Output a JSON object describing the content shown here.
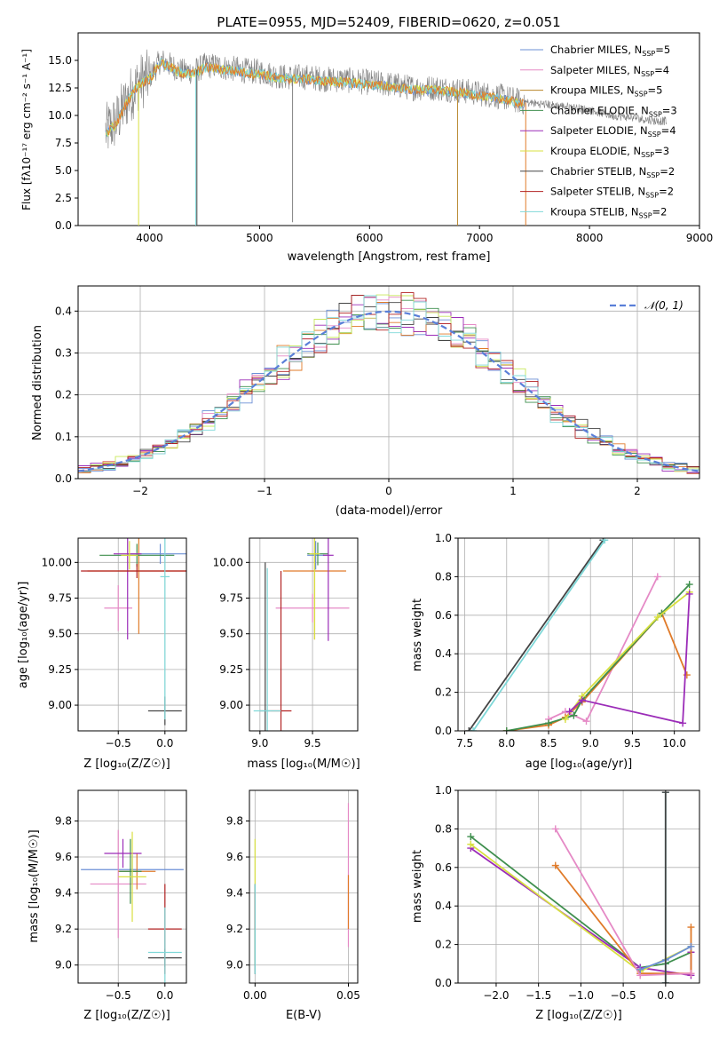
{
  "figure": {
    "title": "PLATE=0955, MJD=52409, FIBERID=0620, z=0.051"
  },
  "colors": {
    "Chabrier MILES": "#6b8fd6",
    "Salpeter MILES": "#e58ac6",
    "Kroupa MILES": "#b8862a",
    "Chabrier ELODIE": "#3f8f4e",
    "Salpeter ELODIE": "#9b2cb8",
    "Kroupa ELODIE": "#d8e040",
    "Chabrier STELIB": "#444444",
    "Salpeter STELIB": "#b22222",
    "Kroupa STELIB": "#7fd8d8",
    "data": "#808080",
    "normal": "#5a7fd8",
    "orange": "#e07b2a",
    "lime": "#c8e85a"
  },
  "chart_data": [
    {
      "id": "spectrum",
      "type": "line",
      "title": "PLATE=0955, MJD=52409, FIBERID=0620, z=0.051",
      "xlabel": "wavelength [Angstrom, rest frame]",
      "ylabel": "Flux [fλ10⁻¹⁷ erg cm⁻² s⁻¹ A⁻¹]",
      "xlim": [
        3350,
        9000
      ],
      "ylim": [
        0,
        17.5
      ],
      "xticks": [
        "4000",
        "5000",
        "6000",
        "7000",
        "8000",
        "9000"
      ],
      "yticks": [
        "0.0",
        "2.5",
        "5.0",
        "7.5",
        "10.0",
        "12.5",
        "15.0"
      ],
      "grid": false,
      "legend_position": "top-right",
      "legend": [
        {
          "name": "Chabrier MILES, N",
          "sub": "SSP",
          "eq": "=5"
        },
        {
          "name": "Salpeter MILES, N",
          "sub": "SSP",
          "eq": "=4"
        },
        {
          "name": "Kroupa MILES, N",
          "sub": "SSP",
          "eq": "=5"
        },
        {
          "name": "Chabrier ELODIE, N",
          "sub": "SSP",
          "eq": "=3"
        },
        {
          "name": "Salpeter ELODIE, N",
          "sub": "SSP",
          "eq": "=4"
        },
        {
          "name": "Kroupa ELODIE, N",
          "sub": "SSP",
          "eq": "=3"
        },
        {
          "name": "Chabrier STELIB, N",
          "sub": "SSP",
          "eq": "=2"
        },
        {
          "name": "Salpeter STELIB, N",
          "sub": "SSP",
          "eq": "=2"
        },
        {
          "name": "Kroupa STELIB, N",
          "sub": "SSP",
          "eq": "=2"
        }
      ],
      "series_envelope": {
        "x": [
          3600,
          3700,
          3800,
          3900,
          4000,
          4100,
          4200,
          4300,
          4400,
          4500,
          4600,
          4700,
          4800,
          4900,
          5000,
          5200,
          5400,
          5600,
          5800,
          6000,
          6200,
          6400,
          6600,
          6800,
          7000,
          7200,
          7400,
          7600,
          7800,
          8000,
          8200,
          8400,
          8600,
          8700
        ],
        "y": [
          8.5,
          9.5,
          11.5,
          13.0,
          13.5,
          15.0,
          14.5,
          14.0,
          14.0,
          14.5,
          14.5,
          14.3,
          14.2,
          14.0,
          14.0,
          13.5,
          13.5,
          13.3,
          13.2,
          13.0,
          12.8,
          12.5,
          12.5,
          12.3,
          12.0,
          11.7,
          11.2,
          11.0,
          10.8,
          10.5,
          10.0,
          9.8,
          9.5,
          9.5
        ]
      }
    },
    {
      "id": "residuals",
      "type": "line",
      "xlabel": "(data-model)/error",
      "ylabel": "Normed distribution",
      "xlim": [
        -2.5,
        2.5
      ],
      "ylim": [
        0,
        0.46
      ],
      "xticks": [
        "−2",
        "−1",
        "0",
        "1",
        "2"
      ],
      "yticks": [
        "0.0",
        "0.1",
        "0.2",
        "0.3",
        "0.4"
      ],
      "grid": true,
      "legend": [
        {
          "name": "𝒩(0, 1)"
        }
      ],
      "legend_position": "top-right"
    },
    {
      "id": "age-vs-Z",
      "type": "scatter",
      "xlabel": "Z [log₁₀(Z/Z☉)]",
      "ylabel": "age  [log₁₀(age/yr)]",
      "xlim": [
        -0.93,
        0.23
      ],
      "ylim": [
        8.82,
        10.17
      ],
      "xticks": [
        "−0.5",
        "0.0"
      ],
      "yticks": [
        "9.00",
        "9.25",
        "9.50",
        "9.75",
        "10.00"
      ],
      "grid": true,
      "points": [
        {
          "x": -0.05,
          "y": 10.06,
          "xerr": 0.35,
          "yerr": 0.07,
          "color": "#6b8fd6"
        },
        {
          "x": -0.5,
          "y": 9.68,
          "xerr": 0.15,
          "yerr": 0.16,
          "color": "#e58ac6"
        },
        {
          "x": -0.28,
          "y": 9.94,
          "xerr": 0.55,
          "yerr": 0.44,
          "color": "#e07b2a"
        },
        {
          "x": -0.3,
          "y": 10.05,
          "xerr": 0.4,
          "yerr": 0.08,
          "color": "#3f8f4e"
        },
        {
          "x": -0.4,
          "y": 10.06,
          "xerr": 0.15,
          "yerr": 0.6,
          "color": "#9b2cb8"
        },
        {
          "x": -0.38,
          "y": 10.05,
          "xerr": 0.09,
          "yerr": 0.1,
          "color": "#d8e040"
        },
        {
          "x": 0.0,
          "y": 8.96,
          "xerr": 0.18,
          "yerr": 0.1,
          "color": "#444444"
        },
        {
          "x": -0.3,
          "y": 9.94,
          "xerr": 0.6,
          "yerr": 0.05,
          "color": "#b22222"
        },
        {
          "x": 0.0,
          "y": 9.9,
          "xerr": 0.05,
          "yerr": 1.0,
          "color": "#7fd8d8"
        }
      ]
    },
    {
      "id": "age-vs-mass",
      "type": "scatter",
      "xlabel": "mass [log₁₀(M/M☉)]",
      "ylabel": "",
      "xlim": [
        8.9,
        9.93
      ],
      "ylim": [
        8.82,
        10.17
      ],
      "xticks": [
        "9.0",
        "9.5"
      ],
      "yticks": [
        "9.00",
        "9.25",
        "9.50",
        "9.75",
        "10.00"
      ],
      "grid": true,
      "points": [
        {
          "x": 9.53,
          "y": 10.05,
          "xerr": 0.08,
          "yerr": 0.1,
          "color": "#6b8fd6"
        },
        {
          "x": 9.5,
          "y": 9.68,
          "xerr": 0.35,
          "yerr": 0.1,
          "color": "#e58ac6"
        },
        {
          "x": 9.52,
          "y": 9.94,
          "xerr": 0.3,
          "yerr": 0.48,
          "color": "#e07b2a"
        },
        {
          "x": 9.55,
          "y": 10.06,
          "xerr": 0.1,
          "yerr": 0.08,
          "color": "#3f8f4e"
        },
        {
          "x": 9.65,
          "y": 10.05,
          "xerr": 0.05,
          "yerr": 0.6,
          "color": "#9b2cb8"
        },
        {
          "x": 9.52,
          "y": 10.06,
          "xerr": 0.05,
          "yerr": 0.6,
          "color": "#d8e040"
        },
        {
          "x": 9.05,
          "y": 8.96,
          "xerr": 0.05,
          "yerr": 1.04,
          "color": "#444444"
        },
        {
          "x": 9.2,
          "y": 8.96,
          "xerr": 0.1,
          "yerr": 0.98,
          "color": "#b22222"
        },
        {
          "x": 9.07,
          "y": 8.96,
          "xerr": 0.13,
          "yerr": 1.0,
          "color": "#7fd8d8"
        }
      ]
    },
    {
      "id": "massweight-vs-age",
      "type": "line",
      "xlabel": "age  [log₁₀(age/yr)]",
      "ylabel": "mass weight",
      "xlim": [
        7.42,
        10.3
      ],
      "ylim": [
        0.0,
        1.0
      ],
      "xticks": [
        "7.5",
        "8.0",
        "8.5",
        "9.0",
        "9.5",
        "10.0"
      ],
      "yticks": [
        "0.0",
        "0.2",
        "0.4",
        "0.6",
        "0.8",
        "1.0"
      ],
      "grid": true,
      "series": [
        {
          "color": "#444444",
          "x": [
            7.55,
            9.15
          ],
          "y": [
            0.0,
            0.99
          ]
        },
        {
          "color": "#7fd8d8",
          "x": [
            7.6,
            9.17
          ],
          "y": [
            0.0,
            0.99
          ]
        },
        {
          "color": "#e58ac6",
          "x": [
            8.5,
            8.7,
            8.95,
            9.8
          ],
          "y": [
            0.06,
            0.1,
            0.05,
            0.8
          ]
        },
        {
          "color": "#e07b2a",
          "x": [
            8.0,
            8.5,
            8.7,
            8.9,
            9.85,
            10.15
          ],
          "y": [
            0.0,
            0.03,
            0.07,
            0.15,
            0.61,
            0.29
          ]
        },
        {
          "color": "#3f8f4e",
          "x": [
            8.0,
            8.5,
            8.8,
            8.9,
            9.85,
            10.18
          ],
          "y": [
            0.0,
            0.04,
            0.08,
            0.16,
            0.61,
            0.76
          ]
        },
        {
          "color": "#d8e040",
          "x": [
            8.7,
            8.9,
            9.8,
            10.18
          ],
          "y": [
            0.06,
            0.18,
            0.59,
            0.72
          ]
        },
        {
          "color": "#9b2cb8",
          "x": [
            8.75,
            8.9,
            10.1,
            10.18
          ],
          "y": [
            0.1,
            0.16,
            0.04,
            0.71
          ]
        }
      ]
    },
    {
      "id": "mass-vs-Z",
      "type": "scatter",
      "xlabel": "Z [log₁₀(Z/Z☉)]",
      "ylabel": "mass [log₁₀(M/M☉)]",
      "xlim": [
        -0.93,
        0.23
      ],
      "ylim": [
        8.9,
        9.97
      ],
      "xticks": [
        "−0.5",
        "0.0"
      ],
      "yticks": [
        "9.0",
        "9.2",
        "9.4",
        "9.6",
        "9.8"
      ],
      "grid": true,
      "points": [
        {
          "x": -0.35,
          "y": 9.53,
          "xerr": 0.55,
          "yerr": 0.08,
          "color": "#6b8fd6"
        },
        {
          "x": -0.5,
          "y": 9.45,
          "xerr": 0.3,
          "yerr": 0.3,
          "color": "#e58ac6"
        },
        {
          "x": -0.3,
          "y": 9.52,
          "xerr": 0.2,
          "yerr": 0.1,
          "color": "#e07b2a"
        },
        {
          "x": -0.37,
          "y": 9.52,
          "xerr": 0.12,
          "yerr": 0.18,
          "color": "#3f8f4e"
        },
        {
          "x": -0.45,
          "y": 9.62,
          "xerr": 0.2,
          "yerr": 0.08,
          "color": "#9b2cb8"
        },
        {
          "x": -0.35,
          "y": 9.49,
          "xerr": 0.15,
          "yerr": 0.25,
          "color": "#d8e040"
        },
        {
          "x": 0.0,
          "y": 9.04,
          "xerr": 0.18,
          "yerr": 0.05,
          "color": "#444444"
        },
        {
          "x": 0.0,
          "y": 9.2,
          "xerr": 0.18,
          "yerr": 0.25,
          "color": "#b22222"
        },
        {
          "x": 0.0,
          "y": 9.07,
          "xerr": 0.18,
          "yerr": 0.25,
          "color": "#7fd8d8"
        }
      ]
    },
    {
      "id": "mass-vs-EBV",
      "type": "scatter",
      "xlabel": "E(B-V)",
      "ylabel": "",
      "xlim": [
        -0.003,
        0.055
      ],
      "ylim": [
        8.9,
        9.97
      ],
      "xticks": [
        "0.00",
        "0.05"
      ],
      "yticks": [
        "9.0",
        "9.2",
        "9.4",
        "9.6",
        "9.8"
      ],
      "grid": true,
      "points": [
        {
          "x": 0.05,
          "y": 9.5,
          "xerr": 0,
          "yerr": 0.4,
          "color": "#e58ac6"
        },
        {
          "x": 0.05,
          "y": 9.35,
          "xerr": 0,
          "yerr": 0.15,
          "color": "#e07b2a"
        },
        {
          "x": 0.0,
          "y": 9.35,
          "xerr": 0,
          "yerr": 0.35,
          "color": "#d8e040"
        },
        {
          "x": 0.0,
          "y": 9.2,
          "xerr": 0,
          "yerr": 0.25,
          "color": "#444444"
        },
        {
          "x": 0.0,
          "y": 9.3,
          "xerr": 0,
          "yerr": 0.1,
          "color": "#b22222"
        },
        {
          "x": 0.0,
          "y": 9.2,
          "xerr": 0,
          "yerr": 0.25,
          "color": "#7fd8d8"
        }
      ]
    },
    {
      "id": "massweight-vs-Z",
      "type": "line",
      "xlabel": "Z [log₁₀(Z/Z☉)]",
      "ylabel": "mass weight",
      "xlim": [
        -2.45,
        0.4
      ],
      "ylim": [
        0.0,
        1.0
      ],
      "xticks": [
        "−2.0",
        "−1.5",
        "−1.0",
        "−0.5",
        "0.0"
      ],
      "yticks": [
        "0.0",
        "0.2",
        "0.4",
        "0.6",
        "0.8",
        "1.0"
      ],
      "grid": true,
      "series": [
        {
          "color": "#3f8f4e",
          "x": [
            -2.3,
            -0.3,
            0.0,
            0.3
          ],
          "y": [
            0.76,
            0.08,
            0.1,
            0.16
          ]
        },
        {
          "color": "#9b2cb8",
          "x": [
            -2.3,
            -0.3,
            0.3,
            0.3
          ],
          "y": [
            0.7,
            0.08,
            0.04,
            0.16
          ]
        },
        {
          "color": "#d8e040",
          "x": [
            -2.3,
            -0.3,
            0.3
          ],
          "y": [
            0.72,
            0.06,
            0.19
          ]
        },
        {
          "color": "#e07b2a",
          "x": [
            -1.3,
            -0.3,
            0.3,
            0.3
          ],
          "y": [
            0.61,
            0.05,
            0.05,
            0.29
          ]
        },
        {
          "color": "#e58ac6",
          "x": [
            -1.3,
            -0.3,
            0.3
          ],
          "y": [
            0.8,
            0.04,
            0.05
          ]
        },
        {
          "color": "#6b8fd6",
          "x": [
            -0.3,
            0.0,
            0.3
          ],
          "y": [
            0.07,
            0.12,
            0.19
          ]
        },
        {
          "color": "#7fd8d8",
          "x": [
            0.0,
            0.0
          ],
          "y": [
            0.0,
            0.99
          ]
        },
        {
          "color": "#444444",
          "x": [
            0.0,
            0.0
          ],
          "y": [
            0.0,
            0.99
          ]
        }
      ]
    }
  ]
}
